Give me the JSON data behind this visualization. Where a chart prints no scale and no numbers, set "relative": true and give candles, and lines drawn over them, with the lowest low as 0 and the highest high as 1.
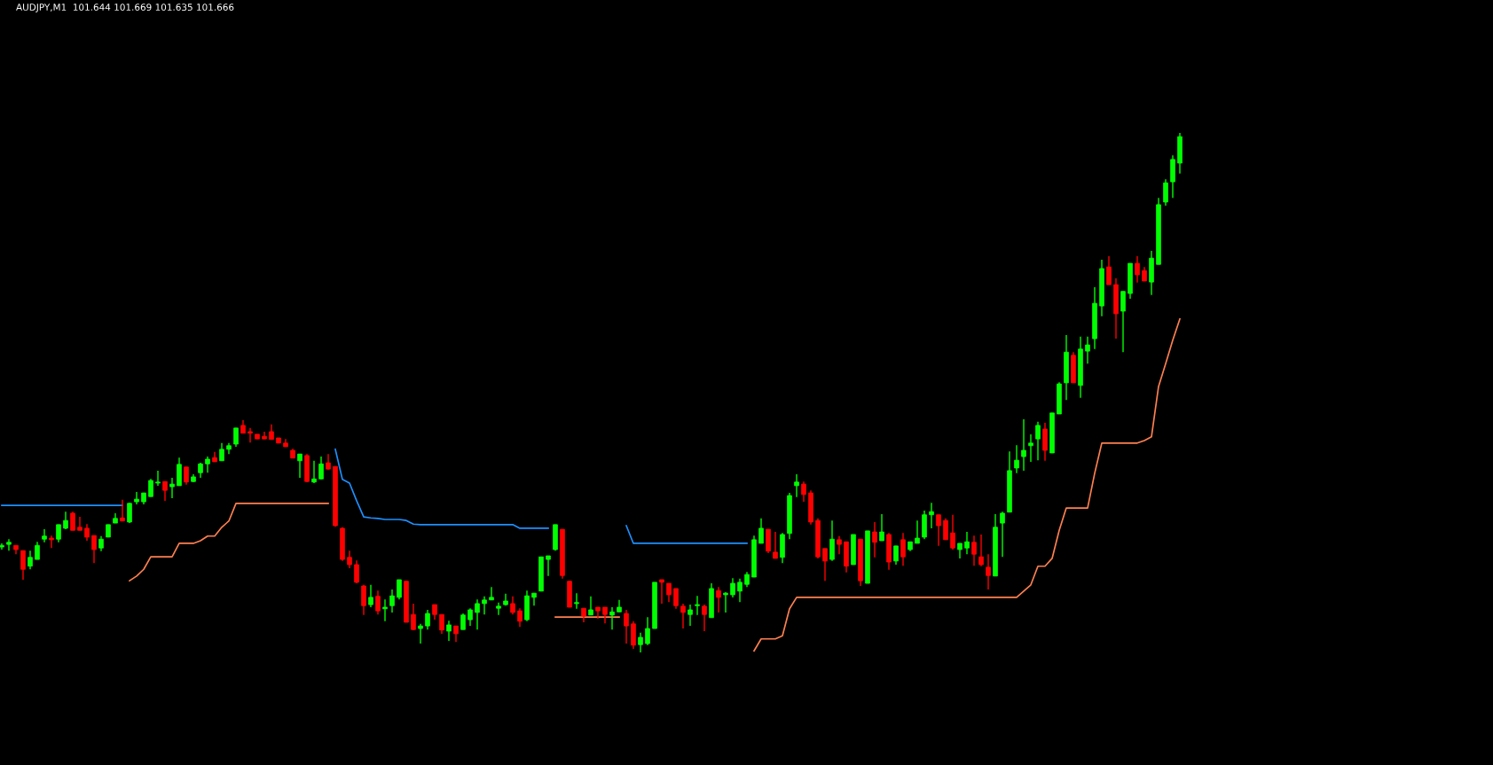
{
  "chart_data": {
    "type": "candlestick",
    "title": "AUDJPY,M1  101.644 101.669 101.635 101.666",
    "relative": true,
    "categories": [
      null,
      null,
      null,
      null,
      null,
      null,
      null,
      null,
      null,
      null,
      null,
      null,
      null,
      null,
      null,
      null,
      null,
      null,
      null,
      null,
      null,
      null,
      null,
      null,
      null,
      null,
      null,
      null,
      null,
      null,
      null,
      null,
      null,
      null,
      null,
      null,
      null,
      null,
      null,
      null,
      null,
      null,
      null,
      null,
      null,
      null,
      null,
      null,
      null,
      null,
      null,
      null,
      null,
      null,
      null,
      null,
      null,
      null,
      null,
      null,
      null,
      null,
      null,
      null,
      null,
      null,
      null,
      null,
      null,
      null,
      null,
      null,
      null,
      null,
      null,
      null,
      null,
      null,
      null,
      null,
      null,
      null,
      null,
      null,
      null,
      null,
      null,
      null,
      null,
      null,
      null,
      null,
      null,
      null,
      null,
      null,
      null,
      null,
      null,
      null,
      null,
      null,
      null,
      null,
      null,
      null,
      null,
      null,
      null,
      null,
      null,
      null,
      null,
      null,
      null,
      null,
      null,
      null,
      null,
      null,
      null,
      null,
      null,
      null,
      null,
      null,
      null,
      null,
      null,
      null,
      null,
      null,
      null,
      null,
      null,
      null,
      null,
      null,
      null,
      null,
      null,
      null,
      null,
      null,
      null,
      null,
      null,
      null,
      null,
      null,
      null,
      null,
      null,
      null,
      null,
      null,
      null,
      null,
      null,
      null,
      null,
      null,
      null,
      null,
      null,
      null,
      null
    ],
    "colors": [
      "#00ff00",
      "#00ff00",
      "#ff0000",
      "#ff0000",
      "#00ff00",
      "#00ff00",
      "#00ff00",
      "#ff0000",
      "#00ff00",
      "#00ff00",
      "#ff0000",
      "#ff0000",
      "#ff0000",
      "#ff0000",
      "#00ff00",
      "#00ff00",
      "#00ff00",
      "#ff0000",
      "#00ff00",
      "#00ff00",
      "#00ff00",
      "#00ff00",
      "#00ff00",
      "#ff0000",
      "#00ff00",
      "#00ff00",
      "#ff0000",
      "#00ff00",
      "#00ff00",
      "#00ff00",
      "#ff0000",
      "#00ff00",
      "#00ff00",
      "#00ff00",
      "#ff0000",
      "#ff0000",
      "#ff0000",
      "#ff0000",
      "#ff0000",
      "#ff0000",
      "#ff0000",
      "#ff0000",
      "#00ff00",
      "#ff0000",
      "#00ff00",
      "#00ff00",
      "#ff0000",
      "#ff0000",
      "#ff0000",
      "#ff0000",
      "#ff0000",
      "#ff0000",
      "#00ff00",
      "#ff0000",
      "#00ff00",
      "#00ff00",
      "#00ff00",
      "#ff0000",
      "#ff0000",
      "#00ff00",
      "#00ff00",
      "#ff0000",
      "#ff0000",
      "#00ff00",
      "#ff0000",
      "#00ff00",
      "#00ff00",
      "#00ff00",
      "#00ff00",
      "#00ff00",
      "#00ff00",
      "#00ff00",
      "#ff0000",
      "#ff0000",
      "#00ff00",
      "#00ff00",
      "#00ff00",
      "#00ff00",
      "#00ff00",
      "#ff0000",
      "#ff0000",
      "#00ff00",
      "#ff0000",
      "#00ff00",
      "#ff0000",
      "#ff0000",
      "#00ff00",
      "#00ff00",
      "#ff0000",
      "#ff0000",
      "#00ff00",
      "#00ff00",
      "#00ff00",
      "#ff0000",
      "#ff0000",
      "#ff0000",
      "#ff0000",
      "#00ff00",
      "#00ff00",
      "#ff0000",
      "#00ff00",
      "#ff0000",
      "#00ff00",
      "#00ff00",
      "#00ff00",
      "#00ff00",
      "#00ff00",
      "#00ff00",
      "#ff0000",
      "#ff0000",
      "#00ff00",
      "#00ff00",
      "#00ff00",
      "#ff0000",
      "#ff0000",
      "#ff0000",
      "#ff0000",
      "#00ff00",
      "#ff0000",
      "#ff0000",
      "#00ff00",
      "#ff0000",
      "#00ff00",
      "#ff0000",
      "#00ff00",
      "#ff0000",
      "#00ff00",
      "#ff0000",
      "#00ff00",
      "#00ff00",
      "#00ff00",
      "#00ff00",
      "#ff0000",
      "#ff0000",
      "#ff0000",
      "#00ff00",
      "#00ff00",
      "#ff0000",
      "#ff0000",
      "#ff0000",
      "#00ff00",
      "#00ff00",
      "#00ff00",
      "#00ff00",
      "#00ff00",
      "#00ff00",
      "#00ff00",
      "#ff0000",
      "#00ff00",
      "#00ff00",
      "#00ff00",
      "#ff0000",
      "#00ff00",
      "#00ff00",
      "#00ff00",
      "#00ff00",
      "#ff0000",
      "#ff0000",
      "#00ff00",
      "#00ff00",
      "#ff0000",
      "#ff0000",
      "#00ff00",
      "#00ff00",
      "#00ff00",
      "#00ff00",
      "#00ff00"
    ],
    "ohlc": [
      [
        0.203,
        0.21,
        0.198,
        0.206
      ],
      [
        0.208,
        0.218,
        0.196,
        0.212
      ],
      [
        0.206,
        0.206,
        0.189,
        0.198
      ],
      [
        0.196,
        0.196,
        0.14,
        0.16
      ],
      [
        0.166,
        0.196,
        0.16,
        0.183
      ],
      [
        0.179,
        0.213,
        0.179,
        0.206
      ],
      [
        0.218,
        0.237,
        0.212,
        0.224
      ],
      [
        0.22,
        0.225,
        0.201,
        0.217
      ],
      [
        0.218,
        0.246,
        0.212,
        0.246
      ],
      [
        0.239,
        0.271,
        0.237,
        0.254
      ],
      [
        0.268,
        0.271,
        0.235,
        0.235
      ],
      [
        0.241,
        0.261,
        0.235,
        0.235
      ],
      [
        0.239,
        0.247,
        0.215,
        0.222
      ],
      [
        0.225,
        0.225,
        0.172,
        0.198
      ],
      [
        0.201,
        0.224,
        0.195,
        0.218
      ],
      [
        0.222,
        0.246,
        0.222,
        0.246
      ],
      [
        0.249,
        0.268,
        0.249,
        0.258
      ],
      [
        0.259,
        0.294,
        0.253,
        0.253
      ],
      [
        0.251,
        0.288,
        0.249,
        0.287
      ],
      [
        0.29,
        0.309,
        0.285,
        0.295
      ],
      [
        0.29,
        0.307,
        0.285,
        0.307
      ],
      [
        0.3,
        0.334,
        0.3,
        0.331
      ],
      [
        0.326,
        0.35,
        0.321,
        0.328
      ],
      [
        0.329,
        0.329,
        0.292,
        0.312
      ],
      [
        0.319,
        0.336,
        0.297,
        0.324
      ],
      [
        0.321,
        0.375,
        0.321,
        0.362
      ],
      [
        0.357,
        0.357,
        0.323,
        0.328
      ],
      [
        0.329,
        0.343,
        0.328,
        0.338
      ],
      [
        0.346,
        0.365,
        0.336,
        0.363
      ],
      [
        0.363,
        0.377,
        0.346,
        0.372
      ],
      [
        0.375,
        0.386,
        0.367,
        0.367
      ],
      [
        0.369,
        0.403,
        0.369,
        0.391
      ],
      [
        0.391,
        0.403,
        0.382,
        0.398
      ],
      [
        0.401,
        0.432,
        0.396,
        0.432
      ],
      [
        0.437,
        0.447,
        0.422,
        0.422
      ],
      [
        0.425,
        0.432,
        0.404,
        0.422
      ],
      [
        0.42,
        0.42,
        0.411,
        0.411
      ],
      [
        0.416,
        0.425,
        0.411,
        0.411
      ],
      [
        0.425,
        0.439,
        0.41,
        0.41
      ],
      [
        0.413,
        0.413,
        0.403,
        0.403
      ],
      [
        0.403,
        0.411,
        0.396,
        0.396
      ],
      [
        0.389,
        0.392,
        0.374,
        0.374
      ],
      [
        0.369,
        0.382,
        0.336,
        0.382
      ],
      [
        0.379,
        0.382,
        0.328,
        0.329
      ],
      [
        0.328,
        0.369,
        0.326,
        0.334
      ],
      [
        0.334,
        0.377,
        0.333,
        0.363
      ],
      [
        0.365,
        0.382,
        0.352,
        0.353
      ],
      [
        0.358,
        0.358,
        0.242,
        0.244
      ],
      [
        0.239,
        0.241,
        0.176,
        0.179
      ],
      [
        0.183,
        0.196,
        0.162,
        0.169
      ],
      [
        0.169,
        0.177,
        0.133,
        0.135
      ],
      [
        0.128,
        0.13,
        0.072,
        0.09
      ],
      [
        0.092,
        0.13,
        0.087,
        0.106
      ],
      [
        0.108,
        0.119,
        0.073,
        0.08
      ],
      [
        0.084,
        0.102,
        0.06,
        0.087
      ],
      [
        0.09,
        0.121,
        0.077,
        0.109
      ],
      [
        0.106,
        0.14,
        0.102,
        0.14
      ],
      [
        0.137,
        0.137,
        0.058,
        0.058
      ],
      [
        0.073,
        0.094,
        0.043,
        0.044
      ],
      [
        0.046,
        0.055,
        0.017,
        0.051
      ],
      [
        0.051,
        0.082,
        0.044,
        0.075
      ],
      [
        0.092,
        0.092,
        0.063,
        0.073
      ],
      [
        0.073,
        0.073,
        0.036,
        0.043
      ],
      [
        0.041,
        0.061,
        0.022,
        0.053
      ],
      [
        0.051,
        0.051,
        0.02,
        0.036
      ],
      [
        0.044,
        0.075,
        0.044,
        0.072
      ],
      [
        0.063,
        0.085,
        0.051,
        0.082
      ],
      [
        0.077,
        0.102,
        0.044,
        0.094
      ],
      [
        0.094,
        0.108,
        0.073,
        0.101
      ],
      [
        0.101,
        0.126,
        0.101,
        0.106
      ],
      [
        0.085,
        0.096,
        0.072,
        0.089
      ],
      [
        0.092,
        0.113,
        0.09,
        0.099
      ],
      [
        0.094,
        0.108,
        0.073,
        0.077
      ],
      [
        0.08,
        0.085,
        0.049,
        0.06
      ],
      [
        0.063,
        0.119,
        0.06,
        0.109
      ],
      [
        0.106,
        0.114,
        0.09,
        0.114
      ],
      [
        0.118,
        0.184,
        0.118,
        0.184
      ],
      [
        0.179,
        0.186,
        0.147,
        0.186
      ],
      [
        0.198,
        0.246,
        0.196,
        0.246
      ],
      [
        0.237,
        0.237,
        0.142,
        0.148
      ],
      [
        0.137,
        0.137,
        0.087,
        0.087
      ],
      [
        0.094,
        0.114,
        0.084,
        0.096
      ],
      [
        0.085,
        0.085,
        0.058,
        0.07
      ],
      [
        0.072,
        0.108,
        0.072,
        0.082
      ],
      [
        0.087,
        0.087,
        0.065,
        0.08
      ],
      [
        0.087,
        0.087,
        0.056,
        0.073
      ],
      [
        0.072,
        0.087,
        0.044,
        0.078
      ],
      [
        0.078,
        0.101,
        0.078,
        0.087
      ],
      [
        0.075,
        0.082,
        0.017,
        0.051
      ],
      [
        0.055,
        0.06,
        0.007,
        0.014
      ],
      [
        0.015,
        0.038,
        0.0,
        0.029
      ],
      [
        0.017,
        0.068,
        0.014,
        0.046
      ],
      [
        0.046,
        0.135,
        0.046,
        0.135
      ],
      [
        0.14,
        0.14,
        0.094,
        0.135
      ],
      [
        0.133,
        0.133,
        0.097,
        0.111
      ],
      [
        0.123,
        0.123,
        0.084,
        0.09
      ],
      [
        0.089,
        0.094,
        0.046,
        0.077
      ],
      [
        0.073,
        0.092,
        0.051,
        0.082
      ],
      [
        0.09,
        0.109,
        0.072,
        0.092
      ],
      [
        0.089,
        0.092,
        0.041,
        0.073
      ],
      [
        0.067,
        0.133,
        0.067,
        0.123
      ],
      [
        0.119,
        0.126,
        0.077,
        0.106
      ],
      [
        0.111,
        0.116,
        0.077,
        0.114
      ],
      [
        0.111,
        0.143,
        0.106,
        0.133
      ],
      [
        0.118,
        0.142,
        0.097,
        0.135
      ],
      [
        0.131,
        0.155,
        0.126,
        0.15
      ],
      [
        0.145,
        0.225,
        0.145,
        0.217
      ],
      [
        0.21,
        0.258,
        0.21,
        0.239
      ],
      [
        0.237,
        0.237,
        0.191,
        0.195
      ],
      [
        0.193,
        0.232,
        0.181,
        0.181
      ],
      [
        0.183,
        0.23,
        0.172,
        0.227
      ],
      [
        0.229,
        0.307,
        0.218,
        0.302
      ],
      [
        0.321,
        0.343,
        0.299,
        0.328
      ],
      [
        0.324,
        0.329,
        0.29,
        0.304
      ],
      [
        0.307,
        0.312,
        0.246,
        0.251
      ],
      [
        0.254,
        0.258,
        0.181,
        0.184
      ],
      [
        0.2,
        0.2,
        0.138,
        0.176
      ],
      [
        0.179,
        0.254,
        0.176,
        0.218
      ],
      [
        0.217,
        0.224,
        0.189,
        0.208
      ],
      [
        0.213,
        0.213,
        0.154,
        0.166
      ],
      [
        0.169,
        0.227,
        0.169,
        0.227
      ],
      [
        0.218,
        0.218,
        0.128,
        0.138
      ],
      [
        0.133,
        0.234,
        0.133,
        0.234
      ],
      [
        0.232,
        0.251,
        0.183,
        0.212
      ],
      [
        0.215,
        0.266,
        0.215,
        0.232
      ],
      [
        0.227,
        0.23,
        0.159,
        0.174
      ],
      [
        0.176,
        0.205,
        0.169,
        0.205
      ],
      [
        0.217,
        0.23,
        0.167,
        0.184
      ],
      [
        0.198,
        0.213,
        0.195,
        0.213
      ],
      [
        0.21,
        0.254,
        0.21,
        0.22
      ],
      [
        0.222,
        0.273,
        0.218,
        0.265
      ],
      [
        0.265,
        0.288,
        0.239,
        0.271
      ],
      [
        0.265,
        0.265,
        0.205,
        0.244
      ],
      [
        0.254,
        0.258,
        0.217,
        0.217
      ],
      [
        0.23,
        0.265,
        0.198,
        0.201
      ],
      [
        0.198,
        0.21,
        0.181,
        0.21
      ],
      [
        0.201,
        0.232,
        0.189,
        0.213
      ],
      [
        0.212,
        0.225,
        0.167,
        0.189
      ],
      [
        0.184,
        0.227,
        0.166,
        0.169
      ],
      [
        0.164,
        0.189,
        0.121,
        0.148
      ],
      [
        0.147,
        0.266,
        0.147,
        0.241
      ],
      [
        0.249,
        0.271,
        0.184,
        0.268
      ],
      [
        0.27,
        0.387,
        0.27,
        0.35
      ],
      [
        0.355,
        0.399,
        0.345,
        0.37
      ],
      [
        0.377,
        0.449,
        0.35,
        0.389
      ],
      [
        0.398,
        0.42,
        0.367,
        0.403
      ],
      [
        0.411,
        0.444,
        0.37,
        0.437
      ],
      [
        0.43,
        0.442,
        0.369,
        0.389
      ],
      [
        0.384,
        0.461,
        0.384,
        0.461
      ],
      [
        0.459,
        0.52,
        0.459,
        0.517
      ],
      [
        0.519,
        0.611,
        0.486,
        0.578
      ],
      [
        0.572,
        0.578,
        0.519,
        0.519
      ],
      [
        0.514,
        0.608,
        0.49,
        0.584
      ],
      [
        0.58,
        0.608,
        0.556,
        0.592
      ],
      [
        0.604,
        0.703,
        0.584,
        0.672
      ],
      [
        0.667,
        0.756,
        0.647,
        0.739
      ],
      [
        0.742,
        0.763,
        0.708,
        0.708
      ],
      [
        0.708,
        0.72,
        0.604,
        0.652
      ],
      [
        0.657,
        0.695,
        0.578,
        0.695
      ],
      [
        0.691,
        0.749,
        0.681,
        0.749
      ],
      [
        0.749,
        0.763,
        0.712,
        0.727
      ],
      [
        0.735,
        0.742,
        0.715,
        0.715
      ],
      [
        0.713,
        0.773,
        0.688,
        0.759
      ],
      [
        0.747,
        0.875,
        0.747,
        0.862
      ],
      [
        0.867,
        0.911,
        0.86,
        0.904
      ],
      [
        0.906,
        0.957,
        0.875,
        0.949
      ],
      [
        0.942,
        1.0,
        0.922,
        0.993
      ]
    ],
    "series": [
      {
        "type": "line",
        "color": "#1e90ff",
        "values": [
          0.283,
          0.283,
          0.283,
          0.283,
          0.283,
          0.283,
          0.283,
          0.283,
          0.283,
          0.283,
          0.283,
          0.283,
          0.283,
          0.283,
          0.283,
          0.283,
          0.283,
          0.283,
          null,
          null,
          null,
          null,
          null,
          null,
          null,
          null,
          null,
          null,
          null,
          null,
          null,
          null,
          null,
          null,
          null,
          null,
          null,
          null,
          null,
          null,
          null,
          null,
          null,
          null,
          null,
          null,
          null,
          0.391,
          0.333,
          0.326,
          0.292,
          0.261,
          0.259,
          0.258,
          0.256,
          0.256,
          0.256,
          0.254,
          0.247,
          0.246,
          0.246,
          0.246,
          0.246,
          0.246,
          0.246,
          0.246,
          0.246,
          0.246,
          0.246,
          0.246,
          0.246,
          0.246,
          0.246,
          0.239,
          0.239,
          0.239,
          0.239,
          0.239,
          null,
          null,
          null,
          null,
          null,
          null,
          null,
          null,
          null,
          null,
          0.244,
          0.21,
          0.21,
          0.21,
          0.21,
          0.21,
          0.21,
          0.21,
          0.21,
          0.21,
          0.21,
          0.21,
          0.21,
          0.21,
          0.21,
          0.21,
          0.21,
          0.21,
          null,
          null,
          null,
          null,
          null,
          null,
          null,
          null,
          null,
          null,
          null,
          null,
          null,
          null,
          null,
          null,
          null,
          null,
          null,
          null,
          null,
          null,
          null,
          null,
          null,
          null,
          null,
          null,
          null,
          null,
          null,
          null,
          null,
          null,
          null,
          null,
          null,
          null,
          null,
          null,
          null,
          null,
          null,
          null,
          null,
          null,
          null,
          null,
          null,
          null,
          null,
          null,
          null,
          null,
          null,
          null,
          null,
          null,
          null,
          null,
          null
        ]
      },
      {
        "type": "line",
        "color": "#ff8050",
        "values": [
          null,
          null,
          null,
          null,
          null,
          null,
          null,
          null,
          null,
          null,
          null,
          null,
          null,
          null,
          null,
          null,
          null,
          null,
          0.138,
          0.147,
          0.16,
          0.184,
          0.184,
          0.184,
          0.184,
          0.21,
          0.21,
          0.21,
          0.215,
          0.224,
          0.224,
          0.241,
          0.253,
          0.287,
          0.287,
          0.287,
          0.287,
          0.287,
          0.287,
          0.287,
          0.287,
          0.287,
          0.287,
          0.287,
          0.287,
          0.287,
          0.287,
          null,
          null,
          null,
          null,
          null,
          null,
          null,
          null,
          null,
          null,
          null,
          null,
          null,
          null,
          null,
          null,
          null,
          null,
          null,
          null,
          null,
          null,
          null,
          null,
          null,
          null,
          null,
          null,
          null,
          null,
          null,
          0.068,
          0.068,
          0.068,
          0.068,
          0.068,
          0.068,
          0.068,
          0.068,
          0.068,
          0.068,
          null,
          null,
          null,
          null,
          null,
          null,
          null,
          null,
          null,
          null,
          null,
          null,
          null,
          null,
          null,
          null,
          null,
          null,
          0.003,
          0.026,
          0.026,
          0.026,
          0.032,
          0.084,
          0.106,
          0.106,
          0.106,
          0.106,
          0.106,
          0.106,
          0.106,
          0.106,
          0.106,
          0.106,
          0.106,
          0.106,
          0.106,
          0.106,
          0.106,
          0.106,
          0.106,
          0.106,
          0.106,
          0.106,
          0.106,
          0.106,
          0.106,
          0.106,
          0.106,
          0.106,
          0.106,
          0.106,
          0.106,
          0.106,
          0.106,
          0.106,
          0.118,
          0.13,
          0.166,
          0.166,
          0.181,
          0.235,
          0.278,
          0.278,
          0.278,
          0.278,
          0.345,
          0.403,
          0.403,
          0.403,
          0.403,
          0.403,
          0.403,
          0.408,
          0.415,
          0.512,
          0.556,
          0.601,
          0.642
        ]
      }
    ]
  }
}
